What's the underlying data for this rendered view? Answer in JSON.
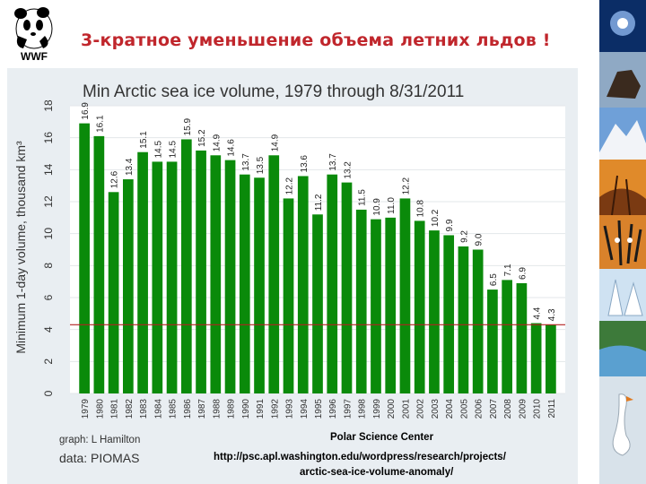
{
  "slide": {
    "title": "3-кратное уменьшение объема летних льдов !",
    "logo_text": "WWF",
    "title_color": "#c0262c"
  },
  "side_strip": {
    "icons": [
      "space-photo-icon",
      "horse-photo-icon",
      "mountain-photo-icon",
      "sunset-photo-icon",
      "tiger-photo-icon",
      "snowy-forest-photo-icon",
      "lake-photo-icon",
      "swan-photo-icon"
    ]
  },
  "chart_data": {
    "type": "bar",
    "title": "Min Arctic sea ice volume, 1979 through 8/31/2011",
    "ylabel": "Minimum 1-day volume, thousand km³",
    "xlabel": "",
    "ylim": [
      0,
      18
    ],
    "yticks": [
      0,
      2,
      4,
      6,
      8,
      10,
      12,
      14,
      16,
      18
    ],
    "categories": [
      "1979",
      "1980",
      "1981",
      "1982",
      "1983",
      "1984",
      "1985",
      "1986",
      "1987",
      "1988",
      "1989",
      "1990",
      "1991",
      "1992",
      "1993",
      "1994",
      "1995",
      "1996",
      "1997",
      "1998",
      "1999",
      "2000",
      "2001",
      "2002",
      "2003",
      "2004",
      "2005",
      "2006",
      "2007",
      "2008",
      "2009",
      "2010",
      "2011"
    ],
    "values": [
      16.9,
      16.1,
      12.6,
      13.4,
      15.1,
      14.5,
      14.5,
      15.9,
      15.2,
      14.9,
      14.6,
      13.7,
      13.5,
      14.9,
      12.2,
      13.6,
      11.2,
      13.7,
      13.2,
      11.5,
      10.9,
      11.0,
      12.2,
      10.8,
      10.2,
      9.9,
      9.2,
      9.0,
      6.5,
      7.1,
      6.9,
      4.4,
      4.3
    ],
    "value_labels": [
      "16.9",
      "16.1",
      "12.6",
      "13.4",
      "15.1",
      "14.5",
      "14.5",
      "15.9",
      "15.2",
      "14.9",
      "14.6",
      "13.7",
      "13.5",
      "14.9",
      "12.2",
      "13.6",
      "11.2",
      "13.7",
      "13.2",
      "11.5",
      "10.9",
      "11.0",
      "12.2",
      "10.8",
      "10.2",
      "9.9",
      "9.2",
      "9.0",
      "6.5",
      "7.1",
      "6.9",
      "4.4",
      "4.3"
    ],
    "reference_line": 4.3,
    "grid": true,
    "bar_color": "#0a8a0a",
    "reference_color": "#b22222"
  },
  "credits": {
    "graph": "graph:  L Hamilton",
    "data": "data:   PIOMAS",
    "source": "Polar Science Center",
    "url_line1": "http://psc.apl.washington.edu/wordpress/research/projects/",
    "url_line2": "arctic-sea-ice-volume-anomaly/"
  }
}
